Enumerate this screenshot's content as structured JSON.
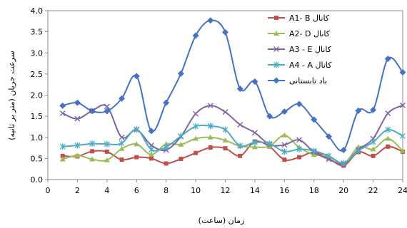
{
  "chart_data": {
    "type": "line",
    "xlabel": "زمان (ساعت)",
    "ylabel": "سرعت جریان (متر بر ثانیه)",
    "xlim": [
      0,
      24
    ],
    "ylim": [
      0.0,
      4.0
    ],
    "x_ticks": [
      "0",
      "2",
      "4",
      "6",
      "8",
      "10",
      "12",
      "14",
      "16",
      "18",
      "20",
      "22",
      "24"
    ],
    "y_ticks": [
      "0.0",
      "0.5",
      "1.0",
      "1.5",
      "2.0",
      "2.5",
      "3.0",
      "3.5",
      "4.0"
    ],
    "grid": false,
    "legend_position": "top-right",
    "x": [
      1,
      2,
      3,
      4,
      5,
      6,
      7,
      8,
      9,
      10,
      11,
      12,
      13,
      14,
      15,
      16,
      17,
      18,
      19,
      20,
      21,
      22,
      23,
      24
    ],
    "series": [
      {
        "name": "A1- B کانال",
        "color": "#c0504d",
        "marker": "square",
        "values": [
          0.56,
          0.55,
          0.67,
          0.66,
          0.47,
          0.53,
          0.5,
          0.38,
          0.49,
          0.63,
          0.76,
          0.74,
          0.56,
          0.9,
          0.78,
          0.47,
          0.53,
          0.65,
          0.5,
          0.33,
          0.65,
          0.56,
          0.78,
          0.66
        ]
      },
      {
        "name": "A2- D کانال",
        "color": "#9bbb59",
        "marker": "triangle",
        "values": [
          0.48,
          0.57,
          0.48,
          0.46,
          0.73,
          0.84,
          0.59,
          0.84,
          0.83,
          0.97,
          1.0,
          0.93,
          0.79,
          0.77,
          0.79,
          1.05,
          0.76,
          0.59,
          0.55,
          0.37,
          0.77,
          0.72,
          0.97,
          0.68
        ]
      },
      {
        "name": "A3 - E کانال",
        "color": "#8064a2",
        "marker": "x",
        "values": [
          1.57,
          1.44,
          1.63,
          1.73,
          1.0,
          1.18,
          0.81,
          0.7,
          1.02,
          1.56,
          1.75,
          1.6,
          1.3,
          1.11,
          0.83,
          0.82,
          0.94,
          0.65,
          0.48,
          0.37,
          0.71,
          0.97,
          1.57,
          1.76
        ]
      },
      {
        "name": "A4 - A کانال",
        "color": "#4bacc6",
        "marker": "star",
        "values": [
          0.78,
          0.81,
          0.85,
          0.84,
          0.86,
          1.19,
          0.71,
          0.77,
          1.03,
          1.26,
          1.27,
          1.18,
          0.8,
          0.88,
          0.85,
          0.66,
          0.72,
          0.68,
          0.56,
          0.39,
          0.68,
          0.89,
          1.18,
          1.03
        ]
      },
      {
        "name": "باد تابستانی",
        "color": "#4572c4",
        "marker": "diamond",
        "values": [
          1.75,
          1.82,
          1.62,
          1.62,
          1.92,
          2.45,
          1.15,
          1.82,
          2.51,
          3.41,
          3.77,
          3.49,
          2.15,
          2.32,
          1.5,
          1.61,
          1.79,
          1.42,
          1.02,
          0.7,
          1.63,
          1.65,
          2.86,
          2.54
        ]
      }
    ]
  }
}
